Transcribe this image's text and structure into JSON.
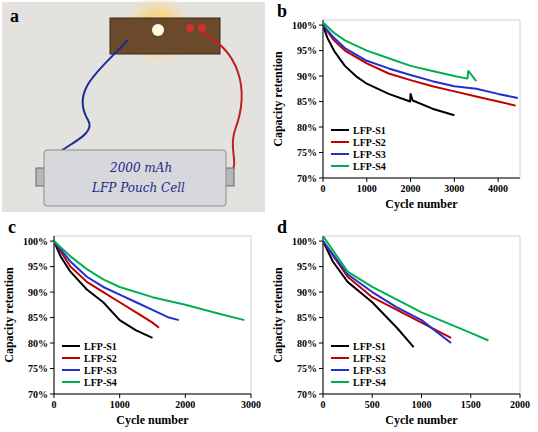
{
  "photo": {
    "label": "a",
    "texts": [
      "2000 mAh",
      "LFP Pouch Cell"
    ]
  },
  "chart_data": [
    {
      "type": "line",
      "title": "b",
      "x_label": "Cycle number",
      "y_label": "Capacity retention",
      "xlim": [
        0,
        4500
      ],
      "xticks": [
        0,
        1000,
        2000,
        3000,
        4000
      ],
      "ylim": [
        70,
        101
      ],
      "yticks": [
        {
          "value": 70,
          "label": "70%"
        },
        {
          "value": 75,
          "label": "75%"
        },
        {
          "value": 80,
          "label": "80%"
        },
        {
          "value": 85,
          "label": "85%"
        },
        {
          "value": 90,
          "label": "90%"
        },
        {
          "value": 95,
          "label": "95%"
        },
        {
          "value": 100,
          "label": "100%"
        }
      ],
      "grid": false,
      "legend": "lower left",
      "series": [
        {
          "name": "LFP-S1",
          "color": "#000000",
          "x": [
            0,
            100,
            250,
            500,
            750,
            1000,
            1500,
            1990,
            2000,
            2050,
            2500,
            3000
          ],
          "values": [
            100,
            97.5,
            95,
            92,
            90,
            88.5,
            86.5,
            85,
            86.5,
            85.2,
            83.6,
            82.3
          ]
        },
        {
          "name": "LFP-S2",
          "color": "#c00000",
          "x": [
            0,
            250,
            500,
            1000,
            1500,
            2000,
            2500,
            3000,
            3500,
            4000,
            4400
          ],
          "values": [
            100,
            97,
            95,
            92.5,
            90.5,
            89.2,
            88,
            87,
            86,
            85,
            84.2
          ]
        },
        {
          "name": "LFP-S3",
          "color": "#2030d0",
          "x": [
            0,
            250,
            500,
            1000,
            1500,
            2000,
            2500,
            3000,
            3500,
            4000,
            4450
          ],
          "values": [
            100,
            97.5,
            95.5,
            93,
            91.5,
            90.2,
            89,
            88,
            87.5,
            86.5,
            85.7
          ]
        },
        {
          "name": "LFP-S4",
          "color": "#00b050",
          "x": [
            0,
            250,
            500,
            1000,
            1500,
            2000,
            2500,
            3000,
            3300,
            3320,
            3500
          ],
          "values": [
            100.5,
            98.5,
            97,
            95,
            93.5,
            92,
            91,
            90,
            89.5,
            91,
            89
          ]
        }
      ]
    },
    {
      "type": "line",
      "title": "c",
      "x_label": "Cycle number",
      "y_label": "Capacity retention",
      "xlim": [
        0,
        3000
      ],
      "xticks": [
        0,
        1000,
        2000,
        3000
      ],
      "ylim": [
        70,
        101
      ],
      "yticks": [
        {
          "value": 70,
          "label": "70%"
        },
        {
          "value": 75,
          "label": "75%"
        },
        {
          "value": 80,
          "label": "80%"
        },
        {
          "value": 85,
          "label": "85%"
        },
        {
          "value": 90,
          "label": "90%"
        },
        {
          "value": 95,
          "label": "95%"
        },
        {
          "value": 100,
          "label": "100%"
        }
      ],
      "grid": false,
      "legend": "lower left",
      "series": [
        {
          "name": "LFP-S1",
          "color": "#000000",
          "x": [
            0,
            100,
            250,
            500,
            750,
            1000,
            1250,
            1500
          ],
          "values": [
            100,
            97,
            94,
            90.5,
            88,
            84.5,
            82.5,
            81
          ]
        },
        {
          "name": "LFP-S2",
          "color": "#c00000",
          "x": [
            0,
            250,
            500,
            750,
            1000,
            1250,
            1500,
            1600
          ],
          "values": [
            100,
            95,
            92,
            90,
            88,
            86,
            84,
            83
          ]
        },
        {
          "name": "LFP-S3",
          "color": "#2030d0",
          "x": [
            0,
            250,
            500,
            750,
            1000,
            1250,
            1500,
            1750,
            1900
          ],
          "values": [
            100,
            96,
            93,
            91,
            89.5,
            88,
            86.5,
            85,
            84.5
          ]
        },
        {
          "name": "LFP-S4",
          "color": "#00b050",
          "x": [
            0,
            250,
            500,
            750,
            1000,
            1500,
            2000,
            2500,
            2900
          ],
          "values": [
            100,
            97,
            94.5,
            92.5,
            91,
            89,
            87.5,
            85.8,
            84.5
          ]
        }
      ]
    },
    {
      "type": "line",
      "title": "d",
      "x_label": "Cycle number",
      "y_label": "Capacity retention",
      "xlim": [
        0,
        2000
      ],
      "xticks": [
        0,
        500,
        1000,
        1500,
        2000
      ],
      "ylim": [
        70,
        101
      ],
      "yticks": [
        {
          "value": 70,
          "label": "70%"
        },
        {
          "value": 75,
          "label": "75%"
        },
        {
          "value": 80,
          "label": "80%"
        },
        {
          "value": 85,
          "label": "85%"
        },
        {
          "value": 90,
          "label": "90%"
        },
        {
          "value": 95,
          "label": "95%"
        },
        {
          "value": 100,
          "label": "100%"
        }
      ],
      "grid": false,
      "legend": "lower left",
      "series": [
        {
          "name": "LFP-S1",
          "color": "#000000",
          "x": [
            0,
            100,
            250,
            500,
            750,
            920
          ],
          "values": [
            100,
            96,
            92,
            88,
            83,
            79.2
          ]
        },
        {
          "name": "LFP-S2",
          "color": "#c00000",
          "x": [
            0,
            250,
            500,
            750,
            1000,
            1300
          ],
          "values": [
            100,
            93,
            89,
            86.5,
            84,
            81
          ]
        },
        {
          "name": "LFP-S3",
          "color": "#2030d0",
          "x": [
            0,
            250,
            500,
            750,
            1000,
            1300
          ],
          "values": [
            100,
            93.5,
            90,
            87,
            84.5,
            80
          ]
        },
        {
          "name": "LFP-S4",
          "color": "#00b050",
          "x": [
            0,
            250,
            500,
            750,
            1000,
            1250,
            1500,
            1680
          ],
          "values": [
            101,
            94,
            91,
            88.5,
            86,
            84,
            82,
            80.5
          ]
        }
      ]
    }
  ]
}
